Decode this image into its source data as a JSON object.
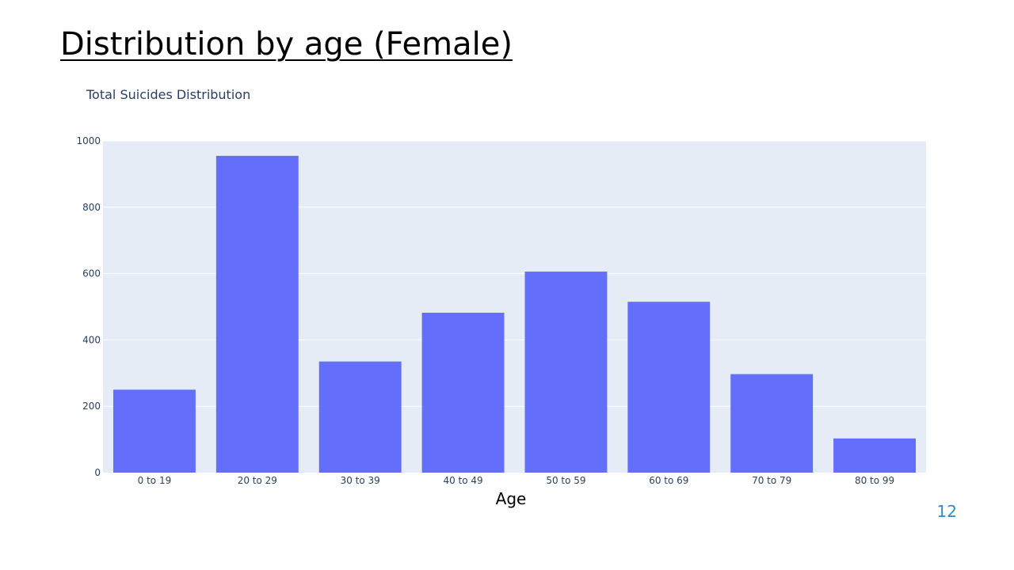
{
  "slide": {
    "title": "Distribution by age (Female)",
    "number": "12"
  },
  "colors": {
    "bar": "#636efa",
    "plot_background": "#e5ecf6",
    "grid": "#ffffff",
    "tick_text": "#2a3f5f",
    "slide_number": "#2f8ac9"
  },
  "chart_data": {
    "type": "bar",
    "title": "Total Suicides Distribution",
    "xlabel": "Age",
    "ylabel": "",
    "categories": [
      "0 to 19",
      "20 to 29",
      "30 to 39",
      "40 to 49",
      "50 to 59",
      "60 to 69",
      "70 to 79",
      "80 to 99"
    ],
    "values": [
      250,
      955,
      335,
      482,
      606,
      515,
      297,
      103
    ],
    "ylim": [
      0,
      1000
    ],
    "yticks": [
      0,
      200,
      400,
      600,
      800,
      1000
    ],
    "grid": true,
    "legend": "none"
  }
}
